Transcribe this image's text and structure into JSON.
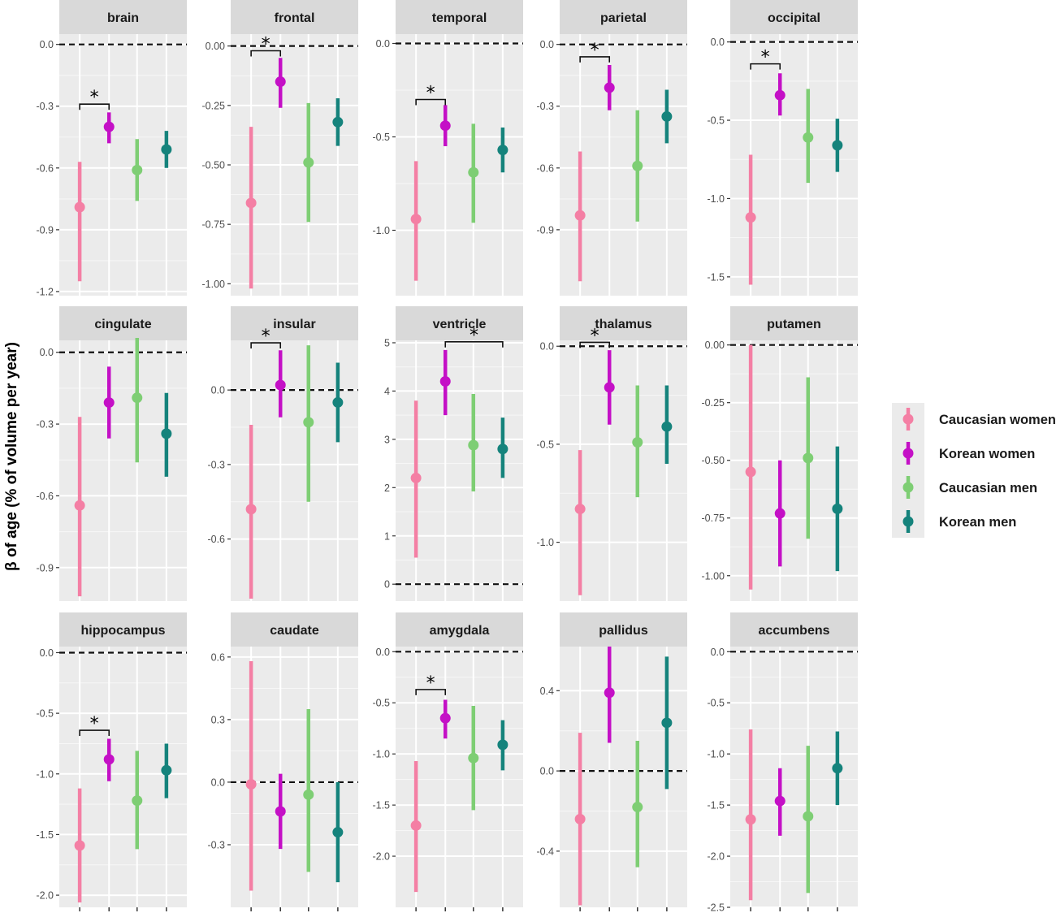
{
  "chart_data": {
    "type": "errorbar-facets",
    "ylabel": "β of age (% of volume per year)",
    "legend": {
      "position": "right",
      "entries": [
        {
          "name": "Caucasian women",
          "color": "#f47fa4"
        },
        {
          "name": "Korean women",
          "color": "#c410c6"
        },
        {
          "name": "Caucasian men",
          "color": "#7ece74"
        },
        {
          "name": "Korean men",
          "color": "#15837c"
        }
      ]
    },
    "groups": [
      "Caucasian women",
      "Korean women",
      "Caucasian men",
      "Korean men"
    ],
    "panels": [
      {
        "title": "brain",
        "ylim": [
          -1.22,
          0.05
        ],
        "ticks": [
          0.0,
          -0.3,
          -0.6,
          -0.9,
          -1.2
        ],
        "tick_labels": [
          "0.0",
          "-0.3",
          "-0.6",
          "-0.9",
          "-1.2"
        ],
        "points": [
          {
            "est": -0.79,
            "lo": -1.15,
            "hi": -0.57
          },
          {
            "est": -0.4,
            "lo": -0.48,
            "hi": -0.33
          },
          {
            "est": -0.61,
            "lo": -0.76,
            "hi": -0.46
          },
          {
            "est": -0.51,
            "lo": -0.6,
            "hi": -0.42
          }
        ],
        "sig": [
          {
            "from": 0,
            "to": 1,
            "y": -0.29,
            "label": "*"
          }
        ]
      },
      {
        "title": "frontal",
        "ylim": [
          -1.05,
          0.05
        ],
        "ticks": [
          0.0,
          -0.25,
          -0.5,
          -0.75,
          -1.0
        ],
        "tick_labels": [
          "0.00",
          "-0.25",
          "-0.50",
          "-0.75",
          "-1.00"
        ],
        "points": [
          {
            "est": -0.66,
            "lo": -1.02,
            "hi": -0.34
          },
          {
            "est": -0.15,
            "lo": -0.26,
            "hi": -0.05
          },
          {
            "est": -0.49,
            "lo": -0.74,
            "hi": -0.24
          },
          {
            "est": -0.32,
            "lo": -0.42,
            "hi": -0.22
          }
        ],
        "sig": [
          {
            "from": 0,
            "to": 1,
            "y": -0.02,
            "label": "*"
          }
        ]
      },
      {
        "title": "temporal",
        "ylim": [
          -1.35,
          0.05
        ],
        "ticks": [
          0.0,
          -0.5,
          -1.0
        ],
        "tick_labels": [
          "0.0",
          "-0.5",
          "-1.0"
        ],
        "points": [
          {
            "est": -0.94,
            "lo": -1.27,
            "hi": -0.63
          },
          {
            "est": -0.44,
            "lo": -0.55,
            "hi": -0.33
          },
          {
            "est": -0.69,
            "lo": -0.96,
            "hi": -0.43
          },
          {
            "est": -0.57,
            "lo": -0.69,
            "hi": -0.45
          }
        ],
        "sig": [
          {
            "from": 0,
            "to": 1,
            "y": -0.3,
            "label": "*"
          }
        ]
      },
      {
        "title": "parietal",
        "ylim": [
          -1.22,
          0.05
        ],
        "ticks": [
          0.0,
          -0.3,
          -0.6,
          -0.9
        ],
        "tick_labels": [
          "0.0",
          "-0.3",
          "-0.6",
          "-0.9"
        ],
        "points": [
          {
            "est": -0.83,
            "lo": -1.15,
            "hi": -0.52
          },
          {
            "est": -0.21,
            "lo": -0.32,
            "hi": -0.1
          },
          {
            "est": -0.59,
            "lo": -0.86,
            "hi": -0.32
          },
          {
            "est": -0.35,
            "lo": -0.48,
            "hi": -0.22
          }
        ],
        "sig": [
          {
            "from": 0,
            "to": 1,
            "y": -0.06,
            "label": "*"
          }
        ]
      },
      {
        "title": "occipital",
        "ylim": [
          -1.62,
          0.05
        ],
        "ticks": [
          0.0,
          -0.5,
          -1.0,
          -1.5
        ],
        "tick_labels": [
          "0.0",
          "-0.5",
          "-1.0",
          "-1.5"
        ],
        "points": [
          {
            "est": -1.12,
            "lo": -1.55,
            "hi": -0.72
          },
          {
            "est": -0.34,
            "lo": -0.47,
            "hi": -0.2
          },
          {
            "est": -0.61,
            "lo": -0.9,
            "hi": -0.3
          },
          {
            "est": -0.66,
            "lo": -0.83,
            "hi": -0.49
          }
        ],
        "sig": [
          {
            "from": 0,
            "to": 1,
            "y": -0.14,
            "label": "*"
          }
        ]
      },
      {
        "title": "cingulate",
        "ylim": [
          -1.04,
          0.05
        ],
        "ticks": [
          0.0,
          -0.3,
          -0.6,
          -0.9
        ],
        "tick_labels": [
          "0.0",
          "-0.3",
          "-0.6",
          "-0.9"
        ],
        "points": [
          {
            "est": -0.64,
            "lo": -1.02,
            "hi": -0.27
          },
          {
            "est": -0.21,
            "lo": -0.36,
            "hi": -0.06
          },
          {
            "est": -0.19,
            "lo": -0.46,
            "hi": 0.06
          },
          {
            "est": -0.34,
            "lo": -0.52,
            "hi": -0.17
          }
        ],
        "sig": []
      },
      {
        "title": "insular",
        "ylim": [
          -0.85,
          0.2
        ],
        "ticks": [
          0.0,
          -0.3,
          -0.6
        ],
        "tick_labels": [
          "0.0",
          "-0.3",
          "-0.6"
        ],
        "points": [
          {
            "est": -0.48,
            "lo": -0.84,
            "hi": -0.14
          },
          {
            "est": 0.02,
            "lo": -0.11,
            "hi": 0.16
          },
          {
            "est": -0.13,
            "lo": -0.45,
            "hi": 0.18
          },
          {
            "est": -0.05,
            "lo": -0.21,
            "hi": 0.11
          }
        ],
        "sig": [
          {
            "from": 0,
            "to": 1,
            "y": 0.19,
            "label": "*"
          }
        ]
      },
      {
        "title": "ventricle",
        "ylim": [
          -0.35,
          5.05
        ],
        "ticks": [
          5,
          4,
          3,
          2,
          1,
          0
        ],
        "tick_labels": [
          "5",
          "4",
          "3",
          "2",
          "1",
          "0"
        ],
        "points": [
          {
            "est": 2.2,
            "lo": 0.55,
            "hi": 3.8
          },
          {
            "est": 4.2,
            "lo": 3.5,
            "hi": 4.85
          },
          {
            "est": 2.88,
            "lo": 1.92,
            "hi": 3.94
          },
          {
            "est": 2.8,
            "lo": 2.2,
            "hi": 3.45
          }
        ],
        "sig": [
          {
            "from": 1,
            "to": 3,
            "y": 5.02,
            "label": "*"
          }
        ]
      },
      {
        "title": "thalamus",
        "ylim": [
          -1.3,
          0.03
        ],
        "ticks": [
          0.0,
          -0.5,
          -1.0
        ],
        "tick_labels": [
          "0.0",
          "-0.5",
          "-1.0"
        ],
        "points": [
          {
            "est": -0.83,
            "lo": -1.27,
            "hi": -0.53
          },
          {
            "est": -0.21,
            "lo": -0.4,
            "hi": -0.02
          },
          {
            "est": -0.49,
            "lo": -0.77,
            "hi": -0.2
          },
          {
            "est": -0.41,
            "lo": -0.6,
            "hi": -0.2
          }
        ],
        "sig": [
          {
            "from": 0,
            "to": 1,
            "y": 0.02,
            "label": "*"
          }
        ]
      },
      {
        "title": "putamen",
        "ylim": [
          -1.11,
          0.02
        ],
        "ticks": [
          0.0,
          -0.25,
          -0.5,
          -0.75,
          -1.0
        ],
        "tick_labels": [
          "0.00",
          "-0.25",
          "-0.50",
          "-0.75",
          "-1.00"
        ],
        "points": [
          {
            "est": -0.55,
            "lo": -1.06,
            "hi": 0.0
          },
          {
            "est": -0.73,
            "lo": -0.96,
            "hi": -0.5
          },
          {
            "est": -0.49,
            "lo": -0.84,
            "hi": -0.14
          },
          {
            "est": -0.71,
            "lo": -0.98,
            "hi": -0.44
          }
        ],
        "sig": []
      },
      {
        "title": "hippocampus",
        "ylim": [
          -2.1,
          0.05
        ],
        "ticks": [
          0.0,
          -0.5,
          -1.0,
          -1.5,
          -2.0
        ],
        "tick_labels": [
          "0.0",
          "-0.5",
          "-1.0",
          "-1.5",
          "-2.0"
        ],
        "points": [
          {
            "est": -1.59,
            "lo": -2.06,
            "hi": -1.12
          },
          {
            "est": -0.88,
            "lo": -1.06,
            "hi": -0.71
          },
          {
            "est": -1.22,
            "lo": -1.62,
            "hi": -0.81
          },
          {
            "est": -0.97,
            "lo": -1.2,
            "hi": -0.75
          }
        ],
        "sig": [
          {
            "from": 0,
            "to": 1,
            "y": -0.64,
            "label": "*"
          }
        ]
      },
      {
        "title": "caudate",
        "ylim": [
          -0.6,
          0.65
        ],
        "ticks": [
          0.6,
          0.3,
          0.0,
          -0.3
        ],
        "tick_labels": [
          "0.6",
          "0.3",
          "0.0",
          "-0.3"
        ],
        "points": [
          {
            "est": -0.01,
            "lo": -0.52,
            "hi": 0.58
          },
          {
            "est": -0.14,
            "lo": -0.32,
            "hi": 0.04
          },
          {
            "est": -0.06,
            "lo": -0.43,
            "hi": 0.35
          },
          {
            "est": -0.24,
            "lo": -0.48,
            "hi": 0.0
          }
        ],
        "sig": []
      },
      {
        "title": "amygdala",
        "ylim": [
          -2.5,
          0.05
        ],
        "ticks": [
          0.0,
          -0.5,
          -1.0,
          -1.5,
          -2.0
        ],
        "tick_labels": [
          "0.0",
          "-0.5",
          "-1.0",
          "-1.5",
          "-2.0"
        ],
        "points": [
          {
            "est": -1.7,
            "lo": -2.35,
            "hi": -1.07
          },
          {
            "est": -0.65,
            "lo": -0.85,
            "hi": -0.47
          },
          {
            "est": -1.04,
            "lo": -1.55,
            "hi": -0.53
          },
          {
            "est": -0.91,
            "lo": -1.16,
            "hi": -0.67
          }
        ],
        "sig": [
          {
            "from": 0,
            "to": 1,
            "y": -0.37,
            "label": "*"
          }
        ]
      },
      {
        "title": "pallidus",
        "ylim": [
          -0.68,
          0.62
        ],
        "ticks": [
          0.4,
          0.0,
          -0.4
        ],
        "tick_labels": [
          "0.4",
          "0.0",
          "-0.4"
        ],
        "points": [
          {
            "est": -0.24,
            "lo": -0.67,
            "hi": 0.19
          },
          {
            "est": 0.39,
            "lo": 0.14,
            "hi": 0.62
          },
          {
            "est": -0.18,
            "lo": -0.48,
            "hi": 0.15
          },
          {
            "est": 0.24,
            "lo": -0.09,
            "hi": 0.57
          }
        ],
        "sig": []
      },
      {
        "title": "accumbens",
        "ylim": [
          -2.5,
          0.05
        ],
        "ticks": [
          0.0,
          -0.5,
          -1.0,
          -1.5,
          -2.0,
          -2.5
        ],
        "tick_labels": [
          "0.0",
          "-0.5",
          "-1.0",
          "-1.5",
          "-2.0",
          "-2.5"
        ],
        "points": [
          {
            "est": -1.64,
            "lo": -2.43,
            "hi": -0.76
          },
          {
            "est": -1.46,
            "lo": -1.8,
            "hi": -1.14
          },
          {
            "est": -1.61,
            "lo": -2.36,
            "hi": -0.92
          },
          {
            "est": -1.14,
            "lo": -1.5,
            "hi": -0.78
          }
        ],
        "sig": []
      }
    ]
  }
}
